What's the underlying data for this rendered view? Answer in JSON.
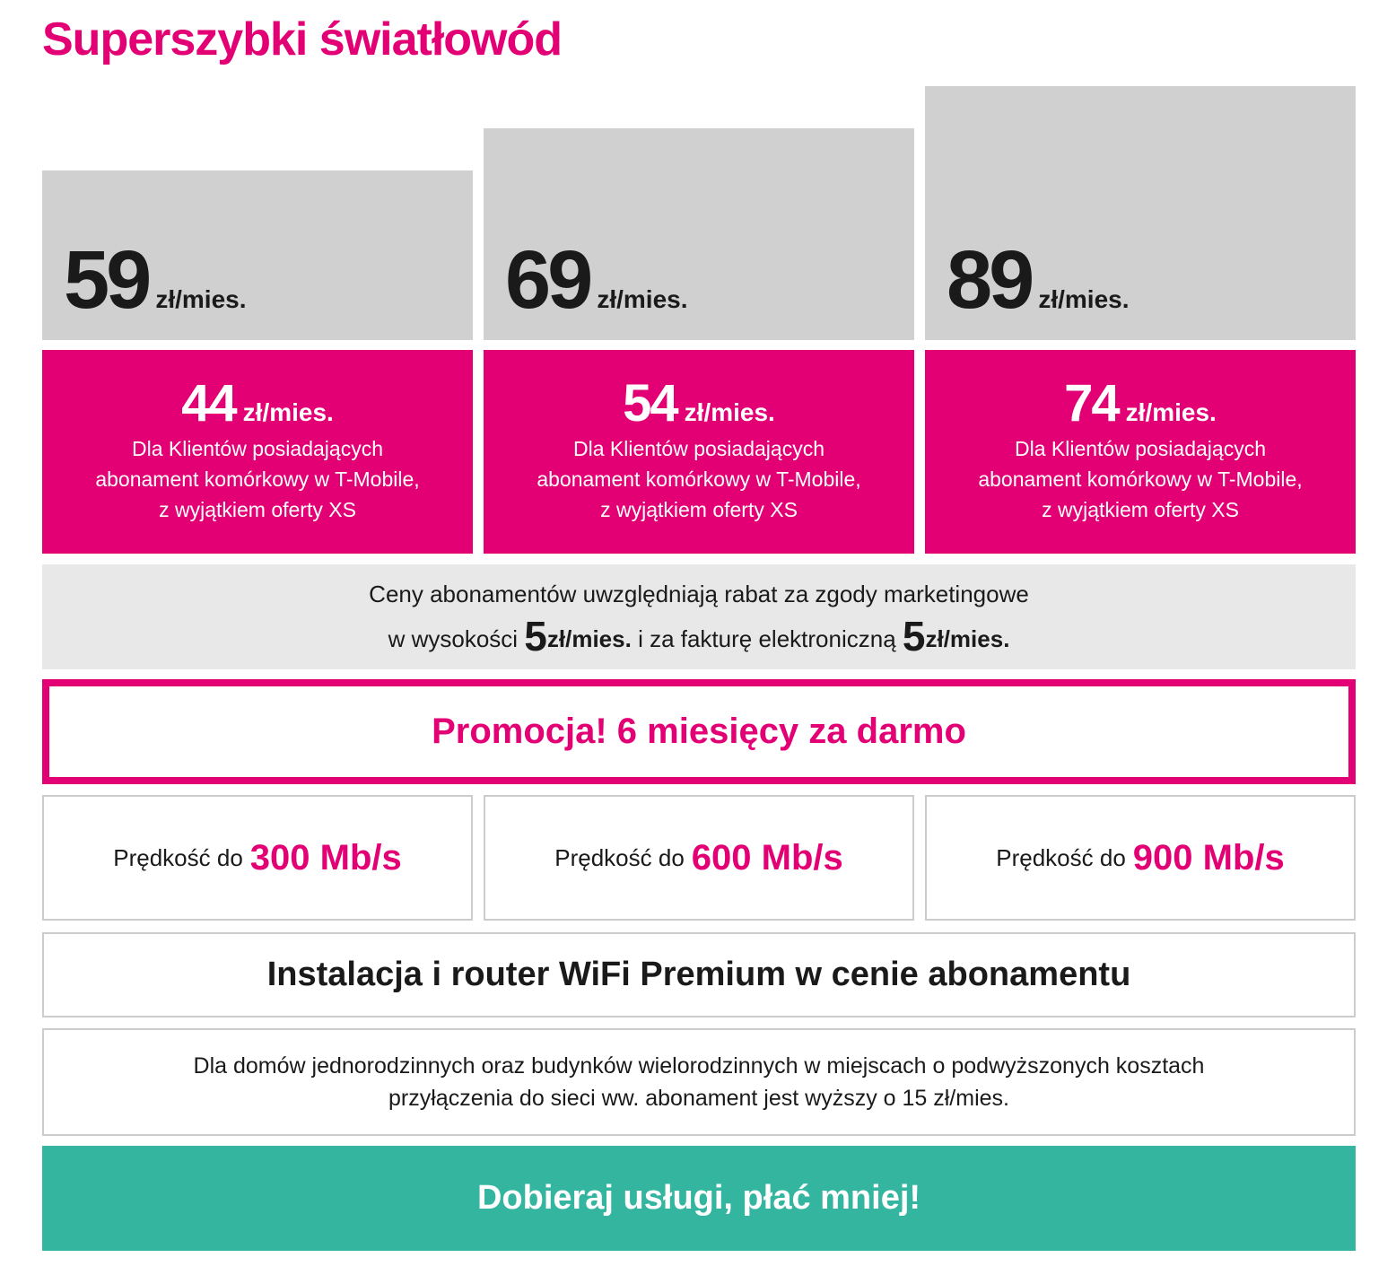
{
  "title": "Superszybki światłowód",
  "plans": [
    {
      "price": "59",
      "unit": "zł/mies.",
      "discount_price": "44",
      "discount_unit": "zł/mies.",
      "discount_note": [
        "Dla Klientów posiadających",
        "abonament komórkowy w T-Mobile,",
        "z wyjątkiem oferty XS"
      ],
      "speed_label": "Prędkość do",
      "speed": "300 Mb/s"
    },
    {
      "price": "69",
      "unit": "zł/mies.",
      "discount_price": "54",
      "discount_unit": "zł/mies.",
      "discount_note": [
        "Dla Klientów posiadających",
        "abonament komórkowy w T-Mobile,",
        "z wyjątkiem oferty XS"
      ],
      "speed_label": "Prędkość do",
      "speed": "600 Mb/s"
    },
    {
      "price": "89",
      "unit": "zł/mies.",
      "discount_price": "74",
      "discount_unit": "zł/mies.",
      "discount_note": [
        "Dla Klientów posiadających",
        "abonament komórkowy w T-Mobile,",
        "z wyjątkiem oferty XS"
      ],
      "speed_label": "Prędkość do",
      "speed": "900 Mb/s"
    }
  ],
  "discount_info": {
    "line1": "Ceny abonamentów uwzględniają rabat za zgody marketingowe",
    "prefix": "w wysokości",
    "amount1": "5",
    "unit1": "zł/mies.",
    "middle": "i za fakturę elektroniczną",
    "amount2": "5",
    "unit2": "zł/mies."
  },
  "promo": "Promocja! 6 miesięcy za darmo",
  "installation": "Instalacja i router WiFi Premium w cenie abonamentu",
  "note": [
    "Dla domów jednorodzinnych oraz budynków wielorodzinnych w miejscach o podwyższonych kosztach",
    "przyłączenia do sieci ww. abonament jest wyższy o 15 zł/mies."
  ],
  "cta": "Dobieraj usługi, płać mniej!"
}
